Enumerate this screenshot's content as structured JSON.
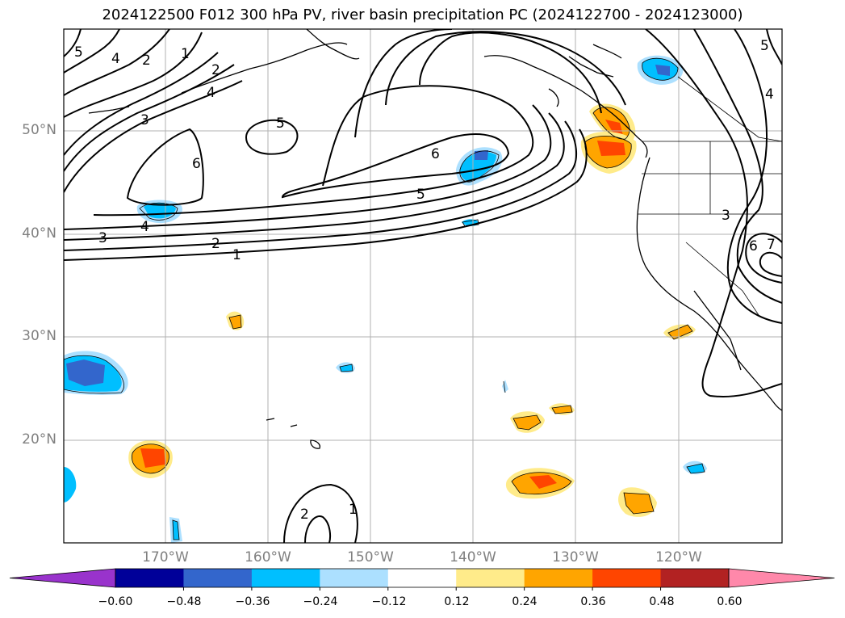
{
  "title": "2024122500 F012 300 hPa PV, river basin precipitation PC (2024122700 - 2024123000)",
  "lat_labels": [
    "50°N",
    "40°N",
    "30°N",
    "20°N"
  ],
  "lon_labels": [
    "170°W",
    "160°W",
    "150°W",
    "140°W",
    "130°W",
    "120°W"
  ],
  "colorbar": {
    "colors": [
      "#9933cc",
      "#000099",
      "#3366cc",
      "#00bfff",
      "#ace0ff",
      "#ffffff",
      "#ffeb8a",
      "#ffa500",
      "#ff4500",
      "#b22222",
      "#ff88aa"
    ],
    "tick_labels": [
      "−0.60",
      "−0.48",
      "−0.36",
      "−0.24",
      "−0.12",
      "0.12",
      "0.24",
      "0.36",
      "0.48",
      "0.60"
    ]
  },
  "contour_labels": [
    "5",
    "4",
    "2",
    "1",
    "2",
    "4",
    "3",
    "5",
    "6",
    "6",
    "5",
    "4",
    "3",
    "2",
    "1",
    "2",
    "1",
    "5",
    "4",
    "3",
    "6",
    "7"
  ]
}
